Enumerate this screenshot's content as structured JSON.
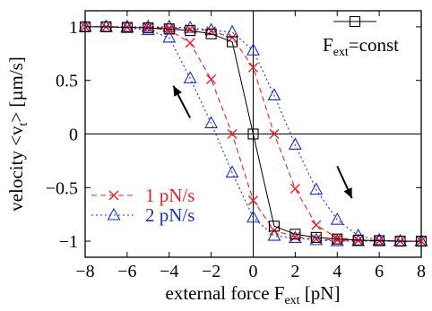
{
  "chart_data": {
    "type": "line",
    "xlabel": {
      "main": "external force  F",
      "sub": "ext",
      "unit": " [pN]"
    },
    "ylabel": {
      "pre": "velocity  <v",
      "sub": "t",
      "post": "> [µm/s]"
    },
    "xlim": [
      -8,
      8
    ],
    "ylim": [
      -1.15,
      1.15
    ],
    "xticks": [
      -8,
      -6,
      -4,
      -2,
      0,
      2,
      4,
      6,
      8
    ],
    "yticks": [
      -1,
      -0.5,
      0,
      0.5,
      1
    ],
    "xtick_labels": [
      "−8",
      "−6",
      "−4",
      "−2",
      "0",
      "2",
      "4",
      "6",
      "8"
    ],
    "ytick_labels": [
      "−1",
      "−0.5",
      "0",
      "0.5",
      "1"
    ],
    "series": [
      {
        "name": "F_ext=const",
        "legend_main": "F",
        "legend_sub": "ext",
        "legend_post": "=const",
        "color": "#000000",
        "marker": "square",
        "dash": "",
        "branches": [
          {
            "x": [
              -8,
              -7,
              -6,
              -5,
              -4,
              -3,
              -2,
              -1,
              0,
              1,
              2,
              3,
              4,
              5,
              6,
              7,
              8
            ],
            "y": [
              1.0,
              1.0,
              0.995,
              0.99,
              0.98,
              0.965,
              0.935,
              0.86,
              0.0,
              -0.86,
              -0.935,
              -0.965,
              -0.98,
              -0.99,
              -0.995,
              -1.0,
              -1.0
            ]
          }
        ]
      },
      {
        "name": "1 pN/s",
        "legend": "1 pN/s",
        "color": "#e8202a",
        "marker": "x",
        "dash": "6,4",
        "branches": [
          {
            "x": [
              -8,
              -7,
              -6,
              -5,
              -4,
              -3,
              -2,
              -1,
              0,
              1,
              2,
              3,
              4,
              5,
              6,
              7,
              8
            ],
            "y": [
              1.0,
              1.0,
              0.995,
              0.99,
              0.97,
              0.85,
              0.51,
              0.0,
              -0.62,
              -0.9,
              -0.96,
              -0.98,
              -0.99,
              -0.995,
              -1.0,
              -1.0,
              -1.0
            ]
          },
          {
            "x": [
              -8,
              -7,
              -6,
              -5,
              -4,
              -3,
              -2,
              -1,
              0,
              1,
              2,
              3,
              4,
              5,
              6,
              7,
              8
            ],
            "y": [
              1.0,
              1.0,
              1.0,
              0.995,
              0.99,
              0.98,
              0.96,
              0.9,
              0.62,
              0.0,
              -0.51,
              -0.85,
              -0.97,
              -0.99,
              -0.995,
              -1.0,
              -1.0
            ]
          }
        ]
      },
      {
        "name": "2 pN/s",
        "legend": "2 pN/s",
        "color": "#1a2fd0",
        "marker": "triangle",
        "dash": "2,3",
        "branches": [
          {
            "x": [
              -8,
              -7,
              -6,
              -5,
              -4,
              -3,
              -2,
              -1,
              0,
              1,
              2,
              3,
              4,
              5,
              6,
              7,
              8
            ],
            "y": [
              1.0,
              1.0,
              0.99,
              0.97,
              0.9,
              0.52,
              0.1,
              -0.36,
              -0.78,
              -0.95,
              -0.97,
              -0.99,
              -1.0,
              -1.0,
              -1.0,
              -1.0,
              -1.0
            ]
          },
          {
            "x": [
              -8,
              -7,
              -6,
              -5,
              -4,
              -3,
              -2,
              -1,
              0,
              1,
              2,
              3,
              4,
              5,
              6,
              7,
              8
            ],
            "y": [
              1.0,
              1.0,
              1.0,
              1.0,
              1.0,
              0.99,
              0.97,
              0.95,
              0.78,
              0.36,
              -0.1,
              -0.52,
              -0.8,
              -0.95,
              -0.99,
              -1.0,
              -1.0
            ]
          }
        ]
      }
    ],
    "arrows": [
      {
        "from": [
          -3.0,
          0.15
        ],
        "to": [
          -3.8,
          0.45
        ],
        "color": "#000000"
      },
      {
        "from": [
          4.0,
          -0.3
        ],
        "to": [
          4.7,
          -0.6
        ],
        "color": "#000000"
      }
    ],
    "grid": false,
    "zero_lines": true,
    "legend_position": "upper-right (F_ext=const), lower-left (rates)"
  }
}
